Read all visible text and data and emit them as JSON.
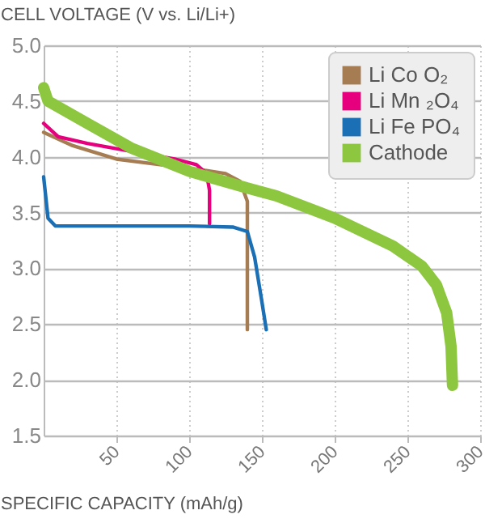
{
  "chart_data": {
    "type": "line",
    "xlabel": "SPECIFIC CAPACITY (mAh/g)",
    "ylabel": "CELL VOLTAGE (V vs. Li/Li+)",
    "legend": "top right",
    "grid": true,
    "xlim": [
      0,
      300
    ],
    "xticks": [
      50,
      100,
      150,
      200,
      250,
      300
    ],
    "ylim": [
      1.5,
      5.0
    ],
    "yticks": [
      1.5,
      {
        "value": 2,
        "label": "2.0"
      },
      2.5,
      {
        "value": 3,
        "label": "3.0"
      },
      3.5,
      {
        "value": 4,
        "label": "4.0"
      },
      4.5,
      {
        "value": 5,
        "label": "5.0"
      }
    ],
    "series": [
      {
        "name": "Li Co O₂",
        "color": "#a67c52",
        "x": [
          0,
          20,
          50,
          80,
          110,
          125,
          135,
          140,
          140,
          140
        ],
        "values": [
          4.22,
          4.1,
          3.98,
          3.93,
          3.88,
          3.85,
          3.78,
          3.6,
          3.0,
          2.45
        ]
      },
      {
        "name": "Li Mn ₂O₄",
        "color": "#e6007e",
        "x": [
          0,
          10,
          30,
          60,
          90,
          105,
          112,
          114,
          114
        ],
        "values": [
          4.3,
          4.18,
          4.12,
          4.05,
          3.98,
          3.93,
          3.85,
          3.7,
          3.4
        ]
      },
      {
        "name": "Li Fe PO₄",
        "color": "#1a6fb5",
        "x": [
          0,
          3,
          8,
          50,
          100,
          130,
          140,
          145,
          150,
          153
        ],
        "values": [
          3.82,
          3.45,
          3.38,
          3.38,
          3.38,
          3.37,
          3.33,
          3.1,
          2.7,
          2.45
        ]
      },
      {
        "name": "Cathode",
        "color": "#8dc63f",
        "x": [
          0,
          3,
          30,
          60,
          100,
          140,
          160,
          200,
          240,
          260,
          270,
          277,
          280,
          281
        ],
        "values": [
          4.62,
          4.5,
          4.3,
          4.08,
          3.87,
          3.72,
          3.65,
          3.45,
          3.2,
          3.02,
          2.85,
          2.6,
          2.3,
          1.95
        ]
      }
    ]
  }
}
